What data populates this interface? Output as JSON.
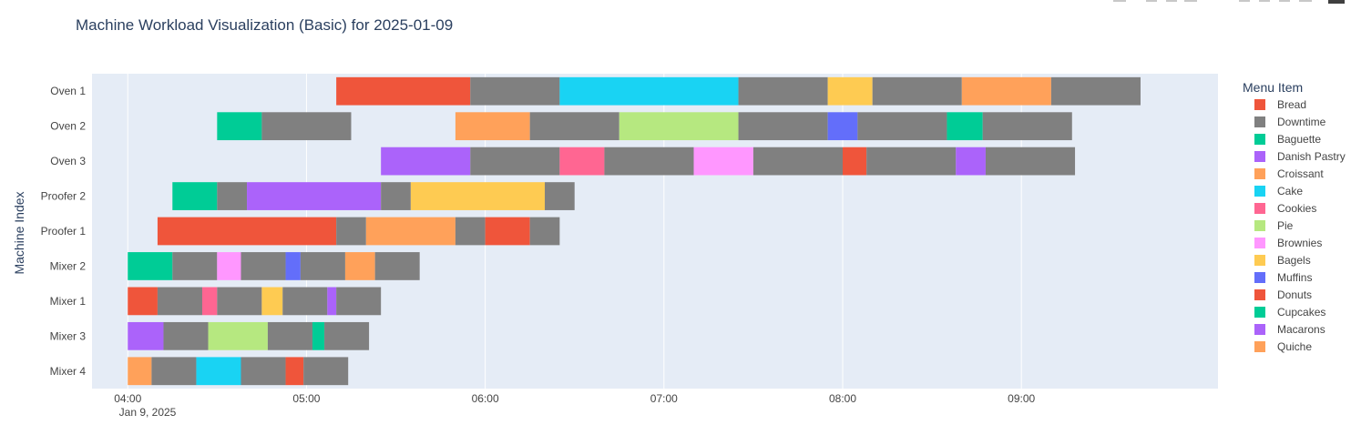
{
  "chart_data": {
    "type": "gantt",
    "title": "Machine Workload Visualization (Basic) for 2025-01-09",
    "ylabel": "Machine Index",
    "xlabel": "",
    "date_label": "Jan 9, 2025",
    "x_ticks": [
      "04:00",
      "05:00",
      "06:00",
      "07:00",
      "08:00",
      "09:00"
    ],
    "xlim": [
      "03:48",
      "10:06"
    ],
    "grid": true,
    "legend_title": "Menu Item",
    "legend_position": "right",
    "legend": [
      {
        "name": "Bread",
        "color": "#EF553B"
      },
      {
        "name": "Downtime",
        "color": "#808080"
      },
      {
        "name": "Baguette",
        "color": "#00CC96"
      },
      {
        "name": "Danish Pastry",
        "color": "#AB63FA"
      },
      {
        "name": "Croissant",
        "color": "#FFA15A"
      },
      {
        "name": "Cake",
        "color": "#19D3F3"
      },
      {
        "name": "Cookies",
        "color": "#FF6692"
      },
      {
        "name": "Pie",
        "color": "#B6E880"
      },
      {
        "name": "Brownies",
        "color": "#FF97FF"
      },
      {
        "name": "Bagels",
        "color": "#FECB52"
      },
      {
        "name": "Muffins",
        "color": "#636EFA"
      },
      {
        "name": "Donuts",
        "color": "#EF553B"
      },
      {
        "name": "Cupcakes",
        "color": "#00CC96"
      },
      {
        "name": "Macarons",
        "color": "#AB63FA"
      },
      {
        "name": "Quiche",
        "color": "#FFA15A"
      }
    ],
    "machines": [
      "Oven 1",
      "Oven 2",
      "Oven 3",
      "Proofer 2",
      "Proofer 1",
      "Mixer 2",
      "Mixer 1",
      "Mixer 3",
      "Mixer 4"
    ],
    "tasks": [
      {
        "machine": "Oven 1",
        "item": "Bread",
        "start": "05:10",
        "end": "05:55"
      },
      {
        "machine": "Oven 1",
        "item": "Downtime",
        "start": "05:55",
        "end": "06:25"
      },
      {
        "machine": "Oven 1",
        "item": "Cake",
        "start": "06:25",
        "end": "07:25"
      },
      {
        "machine": "Oven 1",
        "item": "Downtime",
        "start": "07:25",
        "end": "07:55"
      },
      {
        "machine": "Oven 1",
        "item": "Bagels",
        "start": "07:55",
        "end": "08:10"
      },
      {
        "machine": "Oven 1",
        "item": "Downtime",
        "start": "08:10",
        "end": "08:40"
      },
      {
        "machine": "Oven 1",
        "item": "Croissant",
        "start": "08:40",
        "end": "09:10"
      },
      {
        "machine": "Oven 1",
        "item": "Downtime",
        "start": "09:10",
        "end": "09:40"
      },
      {
        "machine": "Oven 2",
        "item": "Baguette",
        "start": "04:30",
        "end": "04:45"
      },
      {
        "machine": "Oven 2",
        "item": "Downtime",
        "start": "04:45",
        "end": "05:15"
      },
      {
        "machine": "Oven 2",
        "item": "Croissant",
        "start": "05:50",
        "end": "06:15"
      },
      {
        "machine": "Oven 2",
        "item": "Downtime",
        "start": "06:15",
        "end": "06:45"
      },
      {
        "machine": "Oven 2",
        "item": "Pie",
        "start": "06:45",
        "end": "07:25"
      },
      {
        "machine": "Oven 2",
        "item": "Downtime",
        "start": "07:25",
        "end": "07:55"
      },
      {
        "machine": "Oven 2",
        "item": "Muffins",
        "start": "07:55",
        "end": "08:05"
      },
      {
        "machine": "Oven 2",
        "item": "Downtime",
        "start": "08:05",
        "end": "08:35"
      },
      {
        "machine": "Oven 2",
        "item": "Cupcakes",
        "start": "08:35",
        "end": "08:47"
      },
      {
        "machine": "Oven 2",
        "item": "Downtime",
        "start": "08:47",
        "end": "09:17"
      },
      {
        "machine": "Oven 3",
        "item": "Danish Pastry",
        "start": "05:25",
        "end": "05:55"
      },
      {
        "machine": "Oven 3",
        "item": "Downtime",
        "start": "05:55",
        "end": "06:25"
      },
      {
        "machine": "Oven 3",
        "item": "Cookies",
        "start": "06:25",
        "end": "06:40"
      },
      {
        "machine": "Oven 3",
        "item": "Downtime",
        "start": "06:40",
        "end": "07:10"
      },
      {
        "machine": "Oven 3",
        "item": "Brownies",
        "start": "07:10",
        "end": "07:30"
      },
      {
        "machine": "Oven 3",
        "item": "Downtime",
        "start": "07:30",
        "end": "08:00"
      },
      {
        "machine": "Oven 3",
        "item": "Donuts",
        "start": "08:00",
        "end": "08:08"
      },
      {
        "machine": "Oven 3",
        "item": "Downtime",
        "start": "08:08",
        "end": "08:38"
      },
      {
        "machine": "Oven 3",
        "item": "Macarons",
        "start": "08:38",
        "end": "08:48"
      },
      {
        "machine": "Oven 3",
        "item": "Downtime",
        "start": "08:48",
        "end": "09:18"
      },
      {
        "machine": "Proofer 2",
        "item": "Baguette",
        "start": "04:15",
        "end": "04:30"
      },
      {
        "machine": "Proofer 2",
        "item": "Downtime",
        "start": "04:30",
        "end": "04:40"
      },
      {
        "machine": "Proofer 2",
        "item": "Danish Pastry",
        "start": "04:40",
        "end": "05:25"
      },
      {
        "machine": "Proofer 2",
        "item": "Downtime",
        "start": "05:25",
        "end": "05:35"
      },
      {
        "machine": "Proofer 2",
        "item": "Bagels",
        "start": "05:35",
        "end": "06:20"
      },
      {
        "machine": "Proofer 2",
        "item": "Downtime",
        "start": "06:20",
        "end": "06:30"
      },
      {
        "machine": "Proofer 1",
        "item": "Bread",
        "start": "04:10",
        "end": "05:10"
      },
      {
        "machine": "Proofer 1",
        "item": "Downtime",
        "start": "05:10",
        "end": "05:20"
      },
      {
        "machine": "Proofer 1",
        "item": "Croissant",
        "start": "05:20",
        "end": "05:50"
      },
      {
        "machine": "Proofer 1",
        "item": "Downtime",
        "start": "05:50",
        "end": "06:00"
      },
      {
        "machine": "Proofer 1",
        "item": "Donuts",
        "start": "06:00",
        "end": "06:15"
      },
      {
        "machine": "Proofer 1",
        "item": "Downtime",
        "start": "06:15",
        "end": "06:25"
      },
      {
        "machine": "Mixer 2",
        "item": "Baguette",
        "start": "04:00",
        "end": "04:15"
      },
      {
        "machine": "Mixer 2",
        "item": "Downtime",
        "start": "04:15",
        "end": "04:30"
      },
      {
        "machine": "Mixer 2",
        "item": "Brownies",
        "start": "04:30",
        "end": "04:38"
      },
      {
        "machine": "Mixer 2",
        "item": "Downtime",
        "start": "04:38",
        "end": "04:53"
      },
      {
        "machine": "Mixer 2",
        "item": "Muffins",
        "start": "04:53",
        "end": "04:58"
      },
      {
        "machine": "Mixer 2",
        "item": "Downtime",
        "start": "04:58",
        "end": "05:13"
      },
      {
        "machine": "Mixer 2",
        "item": "Quiche",
        "start": "05:13",
        "end": "05:23"
      },
      {
        "machine": "Mixer 2",
        "item": "Downtime",
        "start": "05:23",
        "end": "05:38"
      },
      {
        "machine": "Mixer 1",
        "item": "Bread",
        "start": "04:00",
        "end": "04:10"
      },
      {
        "machine": "Mixer 1",
        "item": "Downtime",
        "start": "04:10",
        "end": "04:25"
      },
      {
        "machine": "Mixer 1",
        "item": "Cookies",
        "start": "04:25",
        "end": "04:30"
      },
      {
        "machine": "Mixer 1",
        "item": "Downtime",
        "start": "04:30",
        "end": "04:45"
      },
      {
        "machine": "Mixer 1",
        "item": "Bagels",
        "start": "04:45",
        "end": "04:52"
      },
      {
        "machine": "Mixer 1",
        "item": "Downtime",
        "start": "04:52",
        "end": "05:07"
      },
      {
        "machine": "Mixer 1",
        "item": "Macarons",
        "start": "05:07",
        "end": "05:10"
      },
      {
        "machine": "Mixer 1",
        "item": "Downtime",
        "start": "05:10",
        "end": "05:25"
      },
      {
        "machine": "Mixer 3",
        "item": "Danish Pastry",
        "start": "04:00",
        "end": "04:12"
      },
      {
        "machine": "Mixer 3",
        "item": "Downtime",
        "start": "04:12",
        "end": "04:27"
      },
      {
        "machine": "Mixer 3",
        "item": "Pie",
        "start": "04:27",
        "end": "04:47"
      },
      {
        "machine": "Mixer 3",
        "item": "Downtime",
        "start": "04:47",
        "end": "05:02"
      },
      {
        "machine": "Mixer 3",
        "item": "Cupcakes",
        "start": "05:02",
        "end": "05:06"
      },
      {
        "machine": "Mixer 3",
        "item": "Downtime",
        "start": "05:06",
        "end": "05:21"
      },
      {
        "machine": "Mixer 4",
        "item": "Quiche",
        "start": "04:00",
        "end": "04:08"
      },
      {
        "machine": "Mixer 4",
        "item": "Downtime",
        "start": "04:08",
        "end": "04:23"
      },
      {
        "machine": "Mixer 4",
        "item": "Cake",
        "start": "04:23",
        "end": "04:38"
      },
      {
        "machine": "Mixer 4",
        "item": "Downtime",
        "start": "04:38",
        "end": "04:53"
      },
      {
        "machine": "Mixer 4",
        "item": "Donuts",
        "start": "04:53",
        "end": "04:59"
      },
      {
        "machine": "Mixer 4",
        "item": "Downtime",
        "start": "04:59",
        "end": "05:14"
      }
    ]
  }
}
